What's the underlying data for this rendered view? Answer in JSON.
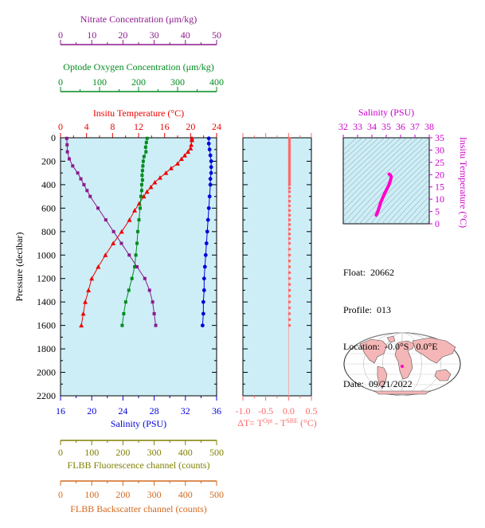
{
  "float_info": {
    "float_label": "Float:",
    "float_id": "20662",
    "profile_label": "Profile:",
    "profile_id": "013",
    "location_label": "Location:",
    "location": "-0.0°S   0.0°E",
    "date_label": "Date:",
    "date": "09/21/2022"
  },
  "colors": {
    "nitrate": "#8b1a8b",
    "oxygen": "#008c1e",
    "temperature": "#ee0000",
    "salinity": "#0000dd",
    "fluorescence": "#808000",
    "backscatter": "#d2691e",
    "delta_t": "#ff6a6a",
    "ts_curve": "#ff00cc",
    "panel_bg": "#cdeef7"
  },
  "chart_data": [
    {
      "type": "line",
      "panel": "main-profile",
      "ylabel": "Pressure (decibar)",
      "ylim": [
        0,
        2200
      ],
      "yticks": [
        0,
        200,
        400,
        600,
        800,
        1000,
        1200,
        1400,
        1600,
        1800,
        2000,
        2200
      ],
      "axes": [
        {
          "key": "nitrate",
          "label": "Nitrate Concentration (μm/kg)",
          "range": [
            0,
            50
          ],
          "ticks": [
            0,
            10,
            20,
            30,
            40,
            50
          ]
        },
        {
          "key": "oxygen",
          "label": "Optode Oxygen Concentration (μm/kg)",
          "range": [
            0,
            400
          ],
          "ticks": [
            0,
            100,
            200,
            300,
            400
          ]
        },
        {
          "key": "temperature",
          "label": "Insitu Temperature (°C)",
          "range": [
            0,
            24
          ],
          "ticks": [
            0,
            4,
            8,
            12,
            16,
            20,
            24
          ]
        },
        {
          "key": "salinity",
          "label": "Salinity (PSU)",
          "range": [
            16,
            36
          ],
          "ticks": [
            16,
            20,
            24,
            28,
            32,
            36
          ]
        },
        {
          "key": "fluorescence",
          "label": "FLBB Fluorescence channel (counts)",
          "range": [
            0,
            500
          ],
          "ticks": [
            0,
            100,
            200,
            300,
            400,
            500
          ]
        },
        {
          "key": "backscatter",
          "label": "FLBB Backscatter channel (counts)",
          "range": [
            0,
            500
          ],
          "ticks": [
            0,
            100,
            200,
            300,
            400,
            500
          ]
        }
      ],
      "series": [
        {
          "key": "temperature",
          "marker": "triangle",
          "pressure": [
            5,
            20,
            60,
            90,
            120,
            150,
            180,
            220,
            260,
            300,
            340,
            380,
            420,
            460,
            500,
            560,
            620,
            700,
            800,
            900,
            1000,
            1100,
            1200,
            1300,
            1400,
            1500,
            1600
          ],
          "values": [
            20.2,
            20.2,
            20.1,
            20.0,
            19.6,
            19.1,
            18.6,
            18.0,
            17.0,
            16.2,
            15.3,
            14.5,
            13.9,
            13.3,
            12.8,
            12.1,
            11.4,
            10.6,
            9.4,
            8.1,
            6.9,
            5.8,
            4.8,
            4.3,
            3.8,
            3.5,
            3.2
          ]
        },
        {
          "key": "salinity",
          "marker": "circle",
          "pressure": [
            5,
            50,
            100,
            150,
            200,
            250,
            300,
            350,
            400,
            500,
            600,
            700,
            800,
            900,
            1000,
            1100,
            1200,
            1300,
            1400,
            1500,
            1600
          ],
          "values": [
            35.0,
            35.0,
            35.1,
            35.2,
            35.3,
            35.3,
            35.3,
            35.2,
            35.2,
            35.1,
            35.0,
            34.9,
            34.8,
            34.7,
            34.6,
            34.5,
            34.4,
            34.4,
            34.3,
            34.3,
            34.2
          ]
        },
        {
          "key": "oxygen",
          "marker": "square",
          "pressure": [
            5,
            40,
            80,
            120,
            160,
            200,
            240,
            280,
            320,
            360,
            400,
            450,
            500,
            600,
            700,
            800,
            900,
            1000,
            1100,
            1200,
            1300,
            1400,
            1500,
            1600
          ],
          "values": [
            222,
            220,
            218,
            219,
            214,
            212,
            211,
            210,
            209,
            210,
            208,
            208,
            206,
            204,
            201,
            198,
            196,
            193,
            190,
            183,
            175,
            167,
            162,
            158
          ]
        },
        {
          "key": "nitrate",
          "marker": "square",
          "pressure": [
            5,
            60,
            120,
            180,
            240,
            300,
            350,
            400,
            450,
            500,
            600,
            700,
            800,
            900,
            1000,
            1100,
            1200,
            1300,
            1400,
            1500,
            1600
          ],
          "values": [
            2.0,
            2.1,
            2.2,
            2.8,
            3.9,
            5.5,
            6.5,
            7.5,
            8.5,
            9.5,
            12.0,
            14.5,
            17.0,
            19.5,
            22.0,
            24.5,
            27.0,
            28.5,
            29.5,
            30.0,
            30.5
          ]
        }
      ]
    },
    {
      "type": "scatter",
      "panel": "delta-t",
      "xlabel_parts": [
        "ΔT= T",
        "Opt",
        " - T",
        "SBE",
        " (°C)"
      ],
      "xlim": [
        -1.0,
        0.5
      ],
      "xticks": [
        -1.0,
        -0.5,
        0.0,
        0.5
      ],
      "pressure": [
        5,
        20,
        40,
        60,
        80,
        100,
        120,
        140,
        160,
        180,
        200,
        220,
        240,
        260,
        280,
        300,
        320,
        340,
        360,
        380,
        400,
        430,
        460,
        500,
        540,
        580,
        620,
        660,
        700,
        740,
        780,
        820,
        860,
        900,
        950,
        1000,
        1050,
        1100,
        1150,
        1200,
        1250,
        1300,
        1350,
        1400,
        1450,
        1500,
        1550,
        1600
      ],
      "values": [
        0.02,
        0.02,
        0.02,
        0.02,
        0.02,
        0.02,
        0.02,
        0.02,
        0.02,
        0.02,
        0.02,
        0.02,
        0.02,
        0.02,
        0.02,
        0.02,
        0.02,
        0.02,
        0.02,
        0.02,
        0.02,
        0.02,
        0.02,
        0.02,
        0.02,
        0.02,
        0.02,
        0.02,
        0.02,
        0.02,
        0.02,
        0.02,
        0.02,
        0.02,
        0.02,
        0.02,
        0.02,
        0.02,
        0.02,
        0.02,
        0.02,
        0.02,
        0.02,
        0.02,
        0.02,
        0.02,
        0.02,
        0.02
      ]
    },
    {
      "type": "line",
      "panel": "ts-diagram",
      "xlabel": "Salinity (PSU)",
      "ylabel": "Insitu Temperature (°C)",
      "xlim": [
        32,
        38
      ],
      "ylim": [
        0,
        35
      ],
      "xticks": [
        32,
        33,
        34,
        35,
        36,
        37,
        38
      ],
      "yticks": [
        0,
        5,
        10,
        15,
        20,
        25,
        30,
        35
      ],
      "salinity": [
        34.3,
        34.4,
        34.5,
        34.6,
        34.75,
        34.9,
        35.05,
        35.2,
        35.3,
        35.35,
        35.3,
        35.2
      ],
      "temperature": [
        3.5,
        4.8,
        6.5,
        8.5,
        10.5,
        12.5,
        14.2,
        16.0,
        17.8,
        19.0,
        19.8,
        20.2
      ]
    },
    {
      "type": "map",
      "panel": "world-map",
      "projection": "robinson-like",
      "marker_location": "-0.0°S 0.0°E"
    }
  ]
}
